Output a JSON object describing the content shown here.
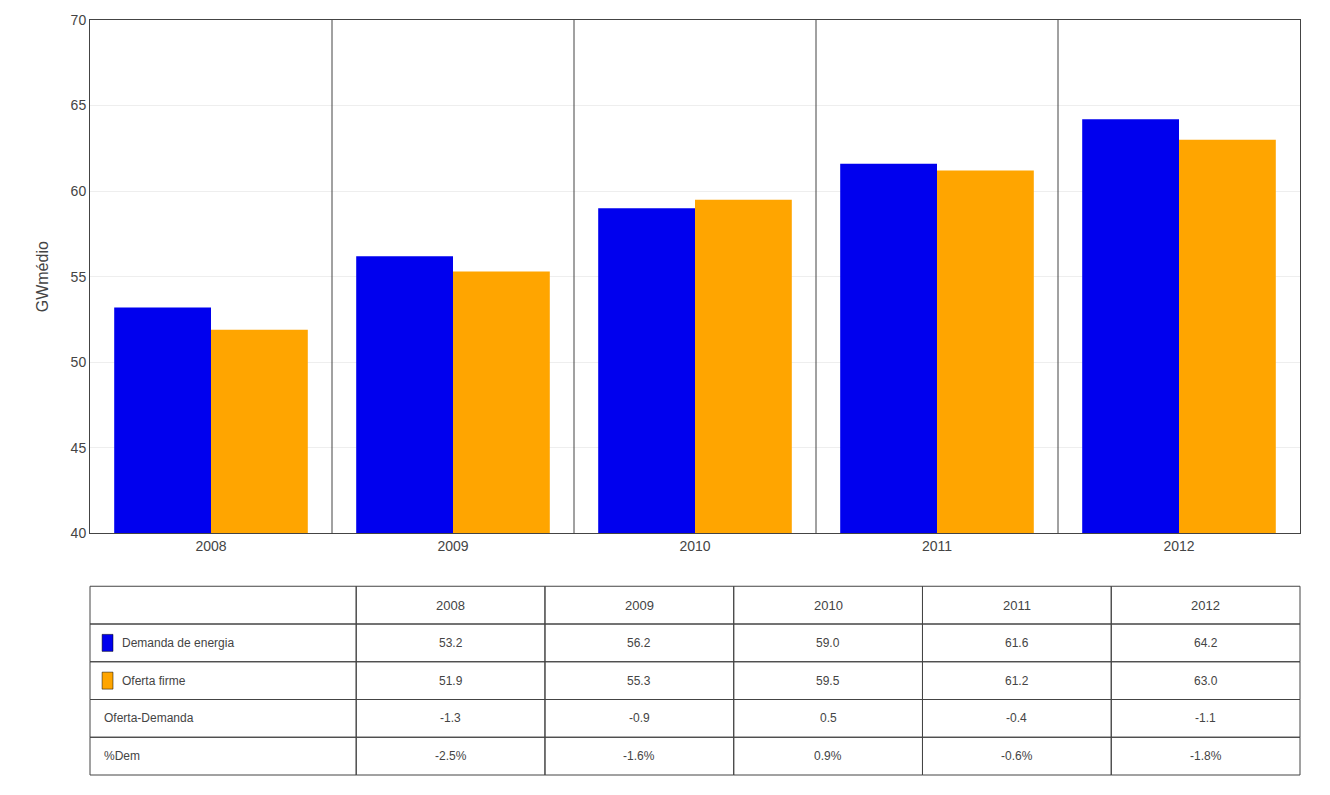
{
  "chart_data": {
    "type": "bar",
    "categories": [
      "2008",
      "2009",
      "2010",
      "2011",
      "2012"
    ],
    "series": [
      {
        "name": "Demanda de energia",
        "color": "#0000EE",
        "values": [
          53.2,
          56.2,
          59.0,
          61.6,
          64.2
        ],
        "value_labels": [
          "53.2",
          "56.2",
          "59.0",
          "61.6",
          "64.2"
        ]
      },
      {
        "name": "Oferta firme",
        "color": "#FFA500",
        "values": [
          51.9,
          55.3,
          59.5,
          61.2,
          63.0
        ],
        "value_labels": [
          "51.9",
          "55.3",
          "59.5",
          "61.2",
          "63.0"
        ]
      }
    ],
    "ylabel": "GWmédio",
    "ylim": [
      40,
      70
    ],
    "yticks": [
      40,
      45,
      50,
      55,
      60,
      65,
      70
    ],
    "grid": true,
    "table": {
      "rows": [
        {
          "name": "Oferta-Demanda",
          "values": [
            -1.3,
            -0.9,
            0.5,
            -0.4,
            -1.1
          ]
        },
        {
          "name": "%Dem",
          "values": [
            -2.5,
            -1.6,
            0.9,
            -0.6,
            -1.8
          ],
          "value_labels": [
            "-2.5%",
            "-1.6%",
            "0.9%",
            "-0.6%",
            "-1.8%"
          ]
        }
      ]
    }
  }
}
